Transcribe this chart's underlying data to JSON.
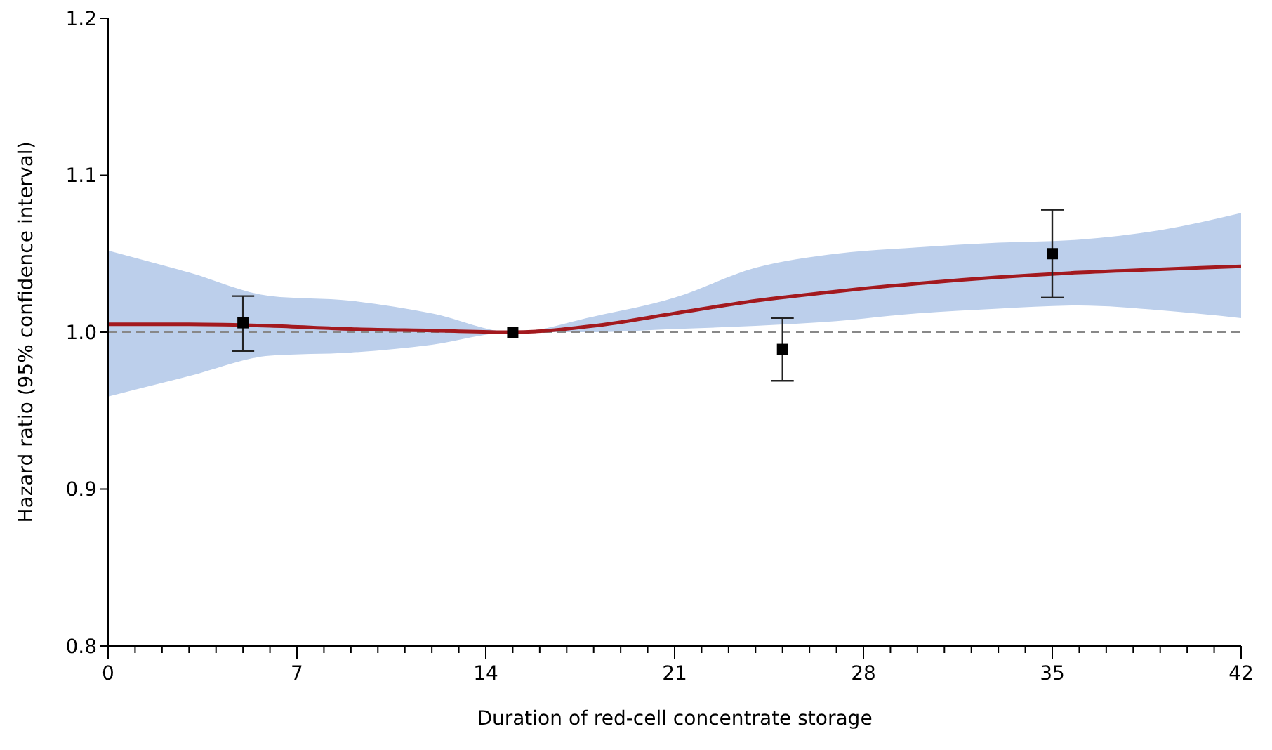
{
  "chart_data": {
    "type": "line",
    "xlabel": "Duration of red-cell concentrate storage",
    "ylabel": "Hazard ratio (95% confidence interval)",
    "xlim": [
      0,
      42
    ],
    "xticks": [
      0,
      {
        "value": 1,
        "label": null
      },
      {
        "value": 2,
        "label": null
      },
      {
        "value": 3,
        "label": null
      },
      {
        "value": 4,
        "label": null
      },
      {
        "value": 5,
        "label": null
      },
      {
        "value": 6,
        "label": null
      },
      7,
      {
        "value": 8,
        "label": null
      },
      {
        "value": 9,
        "label": null
      },
      {
        "value": 10,
        "label": null
      },
      {
        "value": 11,
        "label": null
      },
      {
        "value": 12,
        "label": null
      },
      {
        "value": 13,
        "label": null
      },
      14,
      {
        "value": 15,
        "label": null
      },
      {
        "value": 16,
        "label": null
      },
      {
        "value": 17,
        "label": null
      },
      {
        "value": 18,
        "label": null
      },
      {
        "value": 19,
        "label": null
      },
      {
        "value": 20,
        "label": null
      },
      21,
      {
        "value": 22,
        "label": null
      },
      {
        "value": 23,
        "label": null
      },
      {
        "value": 24,
        "label": null
      },
      {
        "value": 25,
        "label": null
      },
      {
        "value": 26,
        "label": null
      },
      {
        "value": 27,
        "label": null
      },
      28,
      {
        "value": 29,
        "label": null
      },
      {
        "value": 30,
        "label": null
      },
      {
        "value": 31,
        "label": null
      },
      {
        "value": 32,
        "label": null
      },
      {
        "value": 33,
        "label": null
      },
      {
        "value": 34,
        "label": null
      },
      35,
      {
        "value": 36,
        "label": null
      },
      {
        "value": 37,
        "label": null
      },
      {
        "value": 38,
        "label": null
      },
      {
        "value": 39,
        "label": null
      },
      {
        "value": 40,
        "label": null
      },
      {
        "value": 41,
        "label": null
      },
      42
    ],
    "ylim": [
      0.8,
      1.2
    ],
    "yticks": [
      0.8,
      0.9,
      {
        "value": 1,
        "label": "1.0"
      },
      1.1,
      1.2
    ],
    "ref_lines": [
      {
        "axis": "y",
        "value": 1,
        "color": "#888888",
        "line_style": "dashed"
      }
    ],
    "series": [
      {
        "color": "#a3191e",
        "x": [
          0,
          3,
          6,
          9,
          12,
          15,
          18,
          21,
          24,
          27,
          30,
          33,
          36,
          39,
          42
        ],
        "values": [
          1.005,
          1.005,
          1.004,
          1.002,
          1.001,
          1.0,
          1.004,
          1.012,
          1.02,
          1.026,
          1.031,
          1.035,
          1.038,
          1.04,
          1.042
        ],
        "lower": [
          0.959,
          0.972,
          0.985,
          0.987,
          0.992,
          1.0,
          1.0,
          1.002,
          1.004,
          1.007,
          1.012,
          1.015,
          1.017,
          1.014,
          1.009
        ],
        "upper": [
          1.052,
          1.038,
          1.023,
          1.02,
          1.012,
          1.0,
          1.01,
          1.022,
          1.041,
          1.05,
          1.054,
          1.057,
          1.059,
          1.065,
          1.076
        ]
      },
      {
        "type": "scatter",
        "color": "#000000",
        "marker": "square",
        "x": [
          5,
          15,
          25,
          35
        ],
        "values": [
          1.006,
          1.0,
          0.989,
          1.05
        ],
        "errors": [
          [
            0.988,
            1.023
          ],
          null,
          [
            0.969,
            1.009
          ],
          [
            1.022,
            1.078
          ]
        ]
      }
    ]
  }
}
